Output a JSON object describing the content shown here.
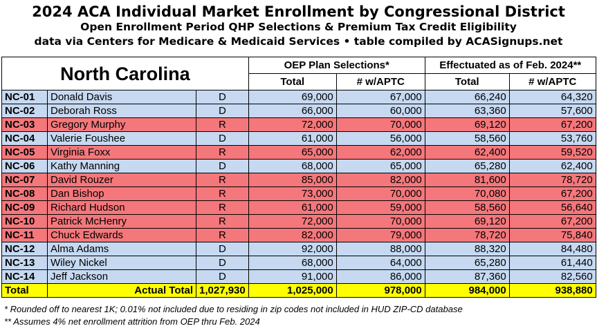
{
  "header": {
    "title": "2024 ACA Individual Market Enrollment by Congressional District",
    "subtitle": "Open Enrollment Period QHP Selections & Premium Tax Credit Eligibility",
    "source": "data via Centers for Medicare & Medicaid Services • table compiled by ACASignups.net"
  },
  "table": {
    "state": "North Carolina",
    "group_headers": [
      "OEP Plan Selections*",
      "Effectuated as of Feb. 2024**"
    ],
    "column_headers": [
      "Total",
      "# w/APTC",
      "Total",
      "# w/APTC"
    ],
    "rows": [
      [
        "NC-01",
        "Donald Davis",
        "D",
        "69,000",
        "67,000",
        "66,240",
        "64,320"
      ],
      [
        "NC-02",
        "Deborah Ross",
        "D",
        "66,000",
        "60,000",
        "63,360",
        "57,600"
      ],
      [
        "NC-03",
        "Gregory Murphy",
        "R",
        "72,000",
        "70,000",
        "69,120",
        "67,200"
      ],
      [
        "NC-04",
        "Valerie Foushee",
        "D",
        "61,000",
        "56,000",
        "58,560",
        "53,760"
      ],
      [
        "NC-05",
        "Virginia Foxx",
        "R",
        "65,000",
        "62,000",
        "62,400",
        "59,520"
      ],
      [
        "NC-06",
        "Kathy Manning",
        "D",
        "68,000",
        "65,000",
        "65,280",
        "62,400"
      ],
      [
        "NC-07",
        "David Rouzer",
        "R",
        "85,000",
        "82,000",
        "81,600",
        "78,720"
      ],
      [
        "NC-08",
        "Dan Bishop",
        "R",
        "73,000",
        "70,000",
        "70,080",
        "67,200"
      ],
      [
        "NC-09",
        "Richard Hudson",
        "R",
        "61,000",
        "59,000",
        "58,560",
        "56,640"
      ],
      [
        "NC-10",
        "Patrick McHenry",
        "R",
        "72,000",
        "70,000",
        "69,120",
        "67,200"
      ],
      [
        "NC-11",
        "Chuck Edwards",
        "R",
        "82,000",
        "79,000",
        "78,720",
        "75,840"
      ],
      [
        "NC-12",
        "Alma Adams",
        "D",
        "92,000",
        "88,000",
        "88,320",
        "84,480"
      ],
      [
        "NC-13",
        "Wiley Nickel",
        "D",
        "68,000",
        "64,000",
        "65,280",
        "61,440"
      ],
      [
        "NC-14",
        "Jeff Jackson",
        "D",
        "91,000",
        "86,000",
        "87,360",
        "82,560"
      ]
    ],
    "total": [
      "Total",
      "Actual Total",
      "1,027,930",
      "1,025,000",
      "978,000",
      "984,000",
      "938,880"
    ]
  },
  "footnotes": [
    "* Rounded off to nearest 1K; 0.01% not included due to residing in zip codes not included in HUD ZIP-CD database",
    "** Assumes 4% net enrollment attrition from OEP thru Feb. 2024"
  ]
}
